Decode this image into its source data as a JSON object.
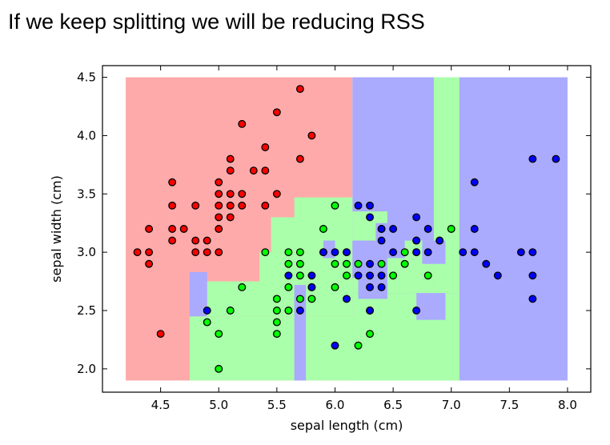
{
  "slide": {
    "title": "If we keep splitting we will be reducing RSS"
  },
  "chart_data": {
    "type": "scatter",
    "xlabel": "sepal length (cm)",
    "ylabel": "sepal width (cm)",
    "xlim": [
      4.0,
      8.2
    ],
    "ylim": [
      1.8,
      4.6
    ],
    "xticks": [
      "4.5",
      "5.0",
      "5.5",
      "6.0",
      "6.5",
      "7.0",
      "7.5",
      "8.0"
    ],
    "yticks": [
      "2.0",
      "2.5",
      "3.0",
      "3.5",
      "4.0",
      "4.5"
    ],
    "grid": false,
    "colors": {
      "region_red": "#ffaaaa",
      "region_green": "#aaffaa",
      "region_blue": "#aaaaff",
      "point_red": "#ff0000",
      "point_green": "#00ff00",
      "point_blue": "#0000ff"
    },
    "decision_regions": [
      {
        "class": "red",
        "x": [
          4.2,
          6.15
        ],
        "y": [
          1.9,
          4.5
        ]
      },
      {
        "class": "blue",
        "x": [
          6.15,
          8.0
        ],
        "y": [
          1.9,
          4.5
        ]
      },
      {
        "class": "green",
        "x": [
          4.75,
          7.07
        ],
        "y": [
          1.9,
          2.45
        ]
      },
      {
        "class": "green",
        "x": [
          4.9,
          6.15
        ],
        "y": [
          2.45,
          2.75
        ]
      },
      {
        "class": "green",
        "x": [
          5.35,
          6.15
        ],
        "y": [
          2.75,
          3.0
        ]
      },
      {
        "class": "green",
        "x": [
          5.45,
          6.15
        ],
        "y": [
          3.0,
          3.3
        ]
      },
      {
        "class": "green",
        "x": [
          5.65,
          6.15
        ],
        "y": [
          3.3,
          3.47
        ]
      },
      {
        "class": "green",
        "x": [
          6.15,
          7.07
        ],
        "y": [
          1.9,
          2.65
        ]
      },
      {
        "class": "green",
        "x": [
          6.15,
          6.45
        ],
        "y": [
          2.65,
          3.35
        ]
      },
      {
        "class": "green",
        "x": [
          6.45,
          6.85
        ],
        "y": [
          2.65,
          2.95
        ]
      },
      {
        "class": "green",
        "x": [
          6.6,
          6.85
        ],
        "y": [
          2.95,
          3.1
        ]
      },
      {
        "class": "green",
        "x": [
          6.85,
          7.07
        ],
        "y": [
          2.65,
          4.5
        ]
      },
      {
        "class": "blue",
        "x": [
          4.75,
          4.9
        ],
        "y": [
          2.45,
          2.83
        ]
      },
      {
        "class": "blue",
        "x": [
          5.65,
          5.75
        ],
        "y": [
          1.9,
          2.72
        ]
      },
      {
        "class": "blue",
        "x": [
          5.9,
          6.0
        ],
        "y": [
          2.95,
          3.1
        ]
      },
      {
        "class": "blue",
        "x": [
          6.15,
          6.45
        ],
        "y": [
          2.78,
          3.1
        ]
      },
      {
        "class": "blue",
        "x": [
          6.2,
          6.45
        ],
        "y": [
          2.6,
          2.78
        ]
      },
      {
        "class": "blue",
        "x": [
          6.35,
          6.6
        ],
        "y": [
          3.1,
          3.25
        ]
      },
      {
        "class": "blue",
        "x": [
          6.75,
          6.95
        ],
        "y": [
          2.9,
          3.1
        ]
      },
      {
        "class": "blue",
        "x": [
          6.7,
          6.95
        ],
        "y": [
          2.42,
          2.65
        ]
      }
    ],
    "series": [
      {
        "class": "red",
        "points": [
          [
            4.3,
            3.0
          ],
          [
            4.4,
            2.9
          ],
          [
            4.4,
            3.0
          ],
          [
            4.4,
            3.2
          ],
          [
            4.5,
            2.3
          ],
          [
            4.6,
            3.1
          ],
          [
            4.6,
            3.2
          ],
          [
            4.6,
            3.4
          ],
          [
            4.6,
            3.6
          ],
          [
            4.7,
            3.2
          ],
          [
            4.8,
            3.0
          ],
          [
            4.8,
            3.1
          ],
          [
            4.8,
            3.4
          ],
          [
            4.9,
            3.0
          ],
          [
            4.9,
            3.1
          ],
          [
            5.0,
            3.0
          ],
          [
            5.0,
            3.2
          ],
          [
            5.0,
            3.3
          ],
          [
            5.0,
            3.4
          ],
          [
            5.0,
            3.5
          ],
          [
            5.0,
            3.6
          ],
          [
            5.1,
            3.3
          ],
          [
            5.1,
            3.4
          ],
          [
            5.1,
            3.5
          ],
          [
            5.1,
            3.7
          ],
          [
            5.1,
            3.8
          ],
          [
            5.2,
            3.4
          ],
          [
            5.2,
            3.5
          ],
          [
            5.2,
            4.1
          ],
          [
            5.3,
            3.7
          ],
          [
            5.4,
            3.4
          ],
          [
            5.4,
            3.7
          ],
          [
            5.4,
            3.9
          ],
          [
            5.5,
            3.5
          ],
          [
            5.5,
            4.2
          ],
          [
            5.7,
            3.8
          ],
          [
            5.7,
            4.4
          ],
          [
            5.8,
            4.0
          ]
        ]
      },
      {
        "class": "green",
        "points": [
          [
            4.9,
            2.4
          ],
          [
            5.0,
            2.0
          ],
          [
            5.0,
            2.3
          ],
          [
            5.1,
            2.5
          ],
          [
            5.2,
            2.7
          ],
          [
            5.4,
            3.0
          ],
          [
            5.5,
            2.3
          ],
          [
            5.5,
            2.4
          ],
          [
            5.5,
            2.5
          ],
          [
            5.5,
            2.6
          ],
          [
            5.6,
            2.5
          ],
          [
            5.6,
            2.7
          ],
          [
            5.6,
            2.9
          ],
          [
            5.6,
            3.0
          ],
          [
            5.7,
            2.6
          ],
          [
            5.7,
            2.8
          ],
          [
            5.7,
            2.9
          ],
          [
            5.7,
            3.0
          ],
          [
            5.8,
            2.6
          ],
          [
            5.8,
            2.7
          ],
          [
            5.9,
            3.0
          ],
          [
            5.9,
            3.2
          ],
          [
            6.0,
            2.7
          ],
          [
            6.0,
            2.9
          ],
          [
            6.0,
            3.4
          ],
          [
            6.1,
            2.8
          ],
          [
            6.1,
            2.9
          ],
          [
            6.1,
            3.0
          ],
          [
            6.2,
            2.2
          ],
          [
            6.2,
            2.9
          ],
          [
            6.3,
            2.3
          ],
          [
            6.3,
            2.5
          ],
          [
            6.4,
            2.9
          ],
          [
            6.4,
            3.2
          ],
          [
            6.5,
            2.8
          ],
          [
            6.6,
            2.9
          ],
          [
            6.6,
            3.0
          ],
          [
            6.7,
            3.0
          ],
          [
            6.7,
            3.1
          ],
          [
            6.8,
            2.8
          ],
          [
            6.9,
            3.1
          ],
          [
            7.0,
            3.2
          ]
        ]
      },
      {
        "class": "blue",
        "points": [
          [
            4.9,
            2.5
          ],
          [
            5.6,
            2.8
          ],
          [
            5.7,
            2.5
          ],
          [
            5.8,
            2.7
          ],
          [
            5.8,
            2.8
          ],
          [
            5.9,
            3.0
          ],
          [
            6.0,
            2.2
          ],
          [
            6.0,
            3.0
          ],
          [
            6.1,
            2.6
          ],
          [
            6.1,
            3.0
          ],
          [
            6.2,
            2.8
          ],
          [
            6.2,
            3.4
          ],
          [
            6.3,
            2.5
          ],
          [
            6.3,
            2.7
          ],
          [
            6.3,
            2.8
          ],
          [
            6.3,
            2.9
          ],
          [
            6.3,
            3.3
          ],
          [
            6.3,
            3.4
          ],
          [
            6.4,
            2.7
          ],
          [
            6.4,
            2.8
          ],
          [
            6.4,
            3.1
          ],
          [
            6.4,
            3.2
          ],
          [
            6.5,
            3.0
          ],
          [
            6.5,
            3.2
          ],
          [
            6.7,
            2.5
          ],
          [
            6.7,
            3.0
          ],
          [
            6.7,
            3.1
          ],
          [
            6.7,
            3.3
          ],
          [
            6.8,
            3.0
          ],
          [
            6.8,
            3.2
          ],
          [
            6.9,
            3.1
          ],
          [
            7.1,
            3.0
          ],
          [
            7.2,
            3.0
          ],
          [
            7.2,
            3.2
          ],
          [
            7.2,
            3.6
          ],
          [
            7.3,
            2.9
          ],
          [
            7.4,
            2.8
          ],
          [
            7.6,
            3.0
          ],
          [
            7.7,
            2.6
          ],
          [
            7.7,
            2.8
          ],
          [
            7.7,
            3.0
          ],
          [
            7.7,
            3.8
          ],
          [
            7.9,
            3.8
          ]
        ]
      }
    ]
  }
}
